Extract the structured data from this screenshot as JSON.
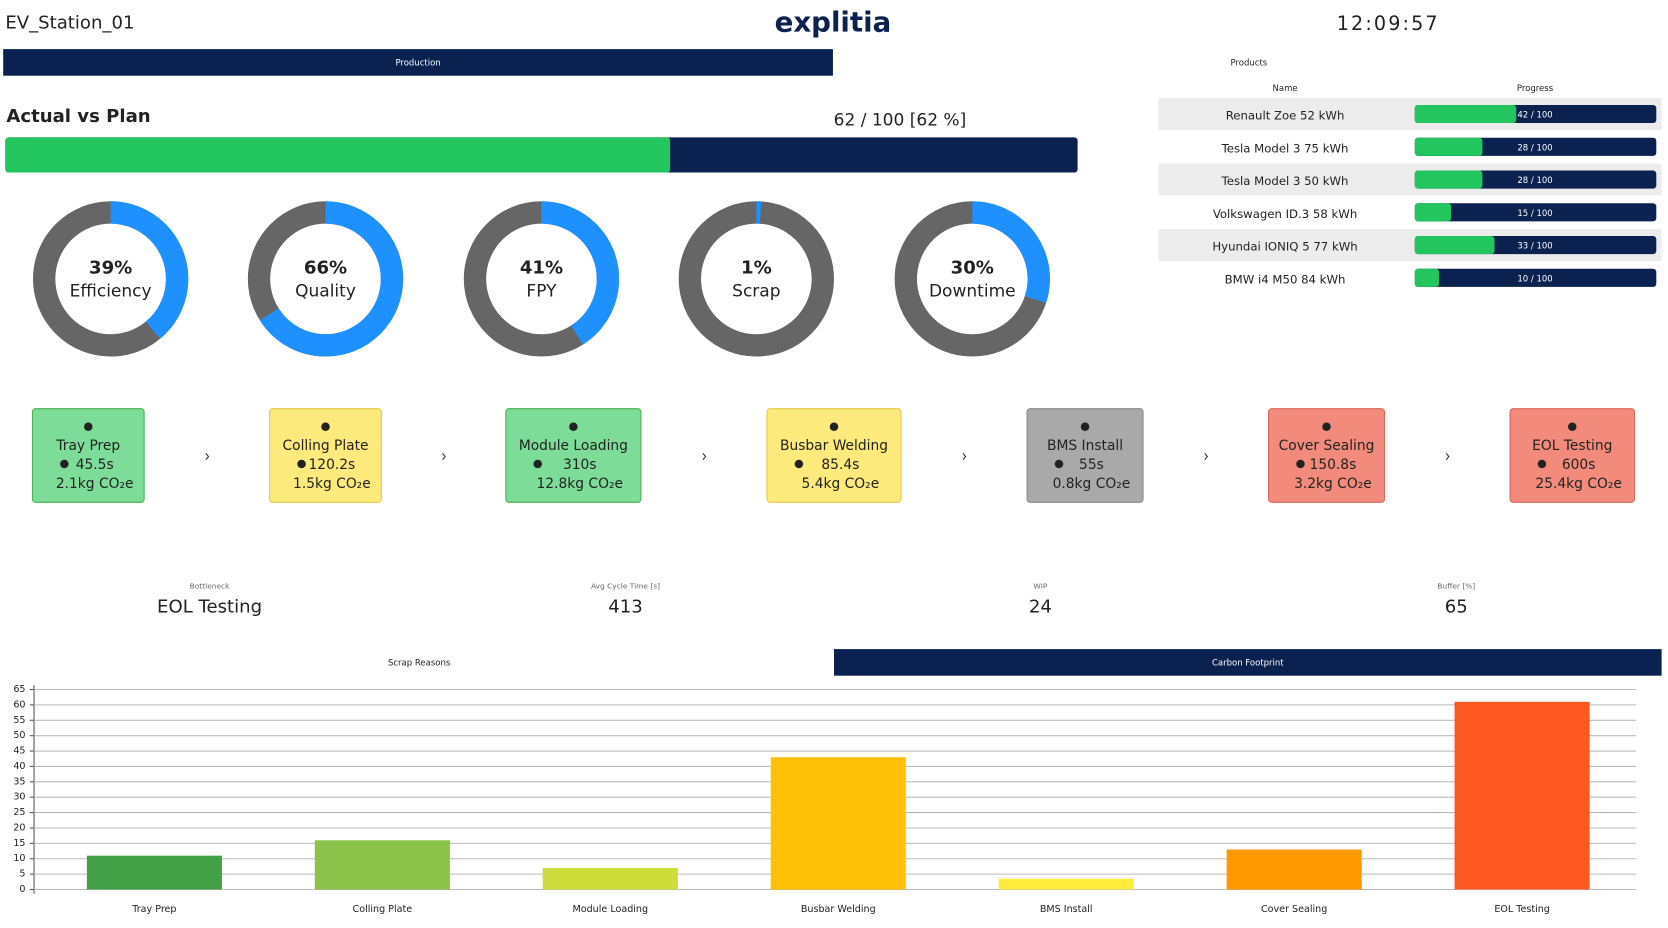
{
  "header": {
    "station": "EV_Station_01",
    "logo": "explitia",
    "clock": "12:09:57"
  },
  "tabs_top": {
    "production": "Production"
  },
  "actual_vs_plan": {
    "title": "Actual vs Plan",
    "label": "62 / 100 [62 %]",
    "actual": 62,
    "plan": 100
  },
  "gauges": [
    {
      "value": 39,
      "label": "39%",
      "name": "Efficiency"
    },
    {
      "value": 66,
      "label": "66%",
      "name": "Quality"
    },
    {
      "value": 41,
      "label": "41%",
      "name": "FPY"
    },
    {
      "value": 1,
      "label": "1%",
      "name": "Scrap"
    },
    {
      "value": 30,
      "label": "30%",
      "name": "Downtime"
    }
  ],
  "stations": [
    {
      "name": "Tray Prep",
      "time": "45.5s",
      "co2": "2.1kg CO₂e",
      "status": "green"
    },
    {
      "name": "Colling Plate",
      "time": "120.2s",
      "co2": "1.5kg CO₂e",
      "status": "yellow"
    },
    {
      "name": "Module Loading",
      "time": "310s",
      "co2": "12.8kg CO₂e",
      "status": "green"
    },
    {
      "name": "Busbar Welding",
      "time": "85.4s",
      "co2": "5.4kg CO₂e",
      "status": "yellow"
    },
    {
      "name": "BMS Install",
      "time": "55s",
      "co2": "0.8kg CO₂e",
      "status": "gray"
    },
    {
      "name": "Cover Sealing",
      "time": "150.8s",
      "co2": "3.2kg CO₂e",
      "status": "red"
    },
    {
      "name": "EOL Testing",
      "time": "600s",
      "co2": "25.4kg CO₂e",
      "status": "red"
    }
  ],
  "kpis": [
    {
      "label": "Bottleneck",
      "value": "EOL Testing"
    },
    {
      "label": "Avg Cycle Time [s]",
      "value": 413
    },
    {
      "label": "WIP",
      "value": 24
    },
    {
      "label": "Buffer [%]",
      "value": 65
    }
  ],
  "products": {
    "title": "Products",
    "columns": [
      "Name",
      "Progress"
    ],
    "rows": [
      {
        "name": "Renault Zoe 52 kWh",
        "progress": 42,
        "total": 100,
        "label": "42 / 100"
      },
      {
        "name": "Tesla Model 3 75 kWh",
        "progress": 28,
        "total": 100,
        "label": "28 / 100"
      },
      {
        "name": "Tesla Model 3 50 kWh",
        "progress": 28,
        "total": 100,
        "label": "28 / 100"
      },
      {
        "name": "Volkswagen ID.3 58 kWh",
        "progress": 15,
        "total": 100,
        "label": "15 / 100"
      },
      {
        "name": "Hyundai IONIQ 5 77 kWh",
        "progress": 33,
        "total": 100,
        "label": "33 / 100"
      },
      {
        "name": "BMW i4 M50 84 kWh",
        "progress": 10,
        "total": 100,
        "label": "10 / 100"
      }
    ]
  },
  "tabs_bottom": {
    "scrap": "Scrap Reasons",
    "carbon": "Carbon Footprint"
  },
  "scrap_chart": {
    "type": "bar",
    "categories": [
      "Tray Prep",
      "Colling Plate",
      "Module Loading",
      "Busbar Welding",
      "BMS Install",
      "Cover Sealing",
      "EOL Testing"
    ],
    "values": [
      11,
      16,
      7,
      43,
      3.5,
      13,
      61
    ],
    "colors": [
      "#43a047",
      "#8bc34a",
      "#cddc39",
      "#ffc107",
      "#ffeb3b",
      "#ff9800",
      "#ff5722"
    ],
    "ylim": [
      0,
      65
    ],
    "yticks": [
      0,
      5,
      10,
      15,
      20,
      25,
      30,
      35,
      40,
      45,
      50,
      55,
      60,
      65
    ],
    "grid": true
  }
}
